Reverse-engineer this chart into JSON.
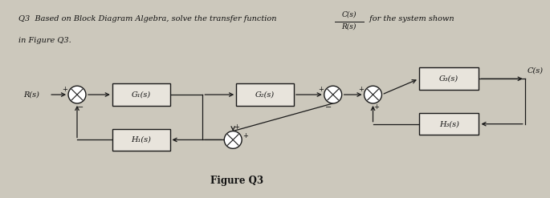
{
  "bg_color": "#ccc8bc",
  "paper_color": "#dedad0",
  "line_color": "#1a1a1a",
  "block_edge_color": "#1a1a1a",
  "block_face_color": "#e8e4dc",
  "text_color": "#111111",
  "font_family": "serif",
  "header_line1": "Q3  Based on Block Diagram Algebra, solve the transfer function",
  "frac_top": "C(s)",
  "frac_bot": "R(s)",
  "header_suffix": " for the system shown",
  "header_line2": "in Figure Q3.",
  "figure_label": "Figure Q3",
  "cs_label": "C(s)",
  "rs_label": "R(s)",
  "g1_label": "G₁(s)",
  "g2_label": "G₂(s)",
  "g3_label": "G₃(s)",
  "h1_label": "H₁(s)",
  "h3_label": "H₃(s)"
}
